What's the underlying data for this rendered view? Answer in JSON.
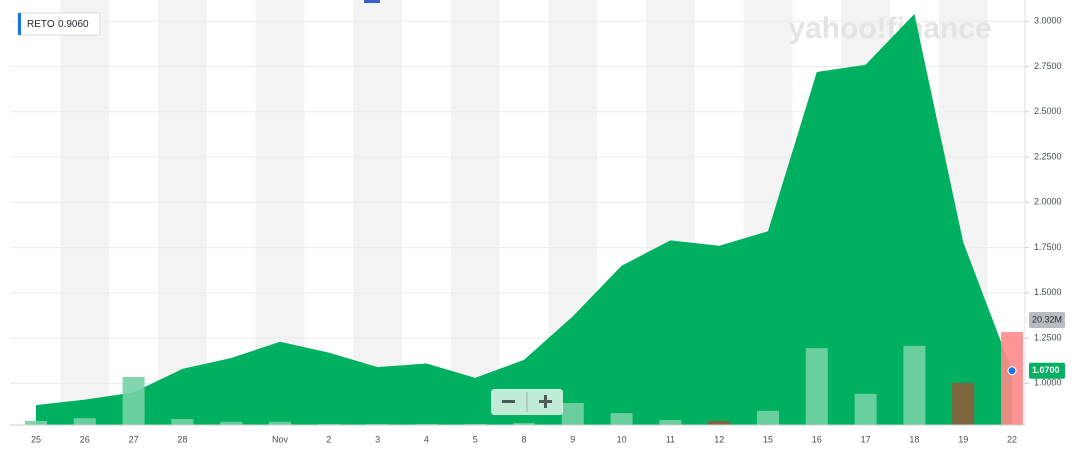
{
  "chart_data": {
    "type": "area",
    "watermark": "yahoo!finance",
    "legend": {
      "symbol": "RETO",
      "value": {
        "value": 0.906,
        "label": "0.9060"
      }
    },
    "categories": [
      "25",
      "26",
      "27",
      "28",
      null,
      "Nov",
      "2",
      "3",
      "4",
      "5",
      "8",
      "9",
      "10",
      "11",
      "12",
      "15",
      "16",
      "17",
      "18",
      "19",
      "22"
    ],
    "series": [
      {
        "name": "RETO",
        "color": "#00b061",
        "axis": "y",
        "values": [
          0.88,
          0.91,
          0.95,
          1.08,
          1.14,
          1.23,
          1.17,
          1.09,
          1.11,
          1.03,
          1.13,
          1.37,
          1.65,
          1.79,
          1.76,
          1.84,
          2.72,
          2.76,
          3.04,
          1.78,
          1.07
        ],
        "value_labels": [
          null,
          null,
          null,
          null,
          null,
          null,
          null,
          null,
          null,
          null,
          null,
          null,
          null,
          null,
          null,
          null,
          null,
          null,
          null,
          null,
          "1.0700"
        ]
      },
      {
        "name": "Volume",
        "axis": "y2",
        "colors": [
          "#74d3a5",
          "#74d3a5",
          "#74d3a5",
          "#74d3a5",
          "#74d3a5",
          "#74d3a5",
          "#74d3a5",
          "#74d3a5",
          "#74d3a5",
          "#74d3a5",
          "#74d3a5",
          "#74d3a5",
          "#74d3a5",
          "#74d3a5",
          "#8b5e3c",
          "#74d3a5",
          "#74d3a5",
          "#74d3a5",
          "#74d3a5",
          "#8b5e3c",
          "#ff8a8a"
        ],
        "values": [
          0.9,
          1.5,
          10.5,
          1.3,
          0.7,
          0.7,
          0.2,
          0.2,
          0.2,
          0.2,
          0.4,
          4.8,
          2.6,
          1.1,
          0.9,
          3.1,
          16.8,
          6.8,
          17.3,
          9.2,
          20.32
        ],
        "value_labels": [
          null,
          null,
          null,
          null,
          null,
          null,
          null,
          null,
          null,
          null,
          null,
          null,
          null,
          null,
          null,
          null,
          null,
          null,
          null,
          null,
          "20.32M"
        ]
      }
    ],
    "ylim": [
      0.77,
      3.09
    ],
    "yticks": [
      {
        "value": 1.0,
        "label": "1.0000"
      },
      {
        "value": 1.25,
        "label": "1.2500"
      },
      {
        "value": 1.5,
        "label": "1.5000"
      },
      {
        "value": 1.75,
        "label": "1.7500"
      },
      {
        "value": 2.0,
        "label": "2.0000"
      },
      {
        "value": 2.25,
        "label": "2.2500"
      },
      {
        "value": 2.5,
        "label": "2.5000"
      },
      {
        "value": 2.75,
        "label": "2.7500"
      },
      {
        "value": 3.0,
        "label": "3.0000"
      }
    ],
    "y2lim": [
      0,
      91.8
    ],
    "grid": true
  }
}
